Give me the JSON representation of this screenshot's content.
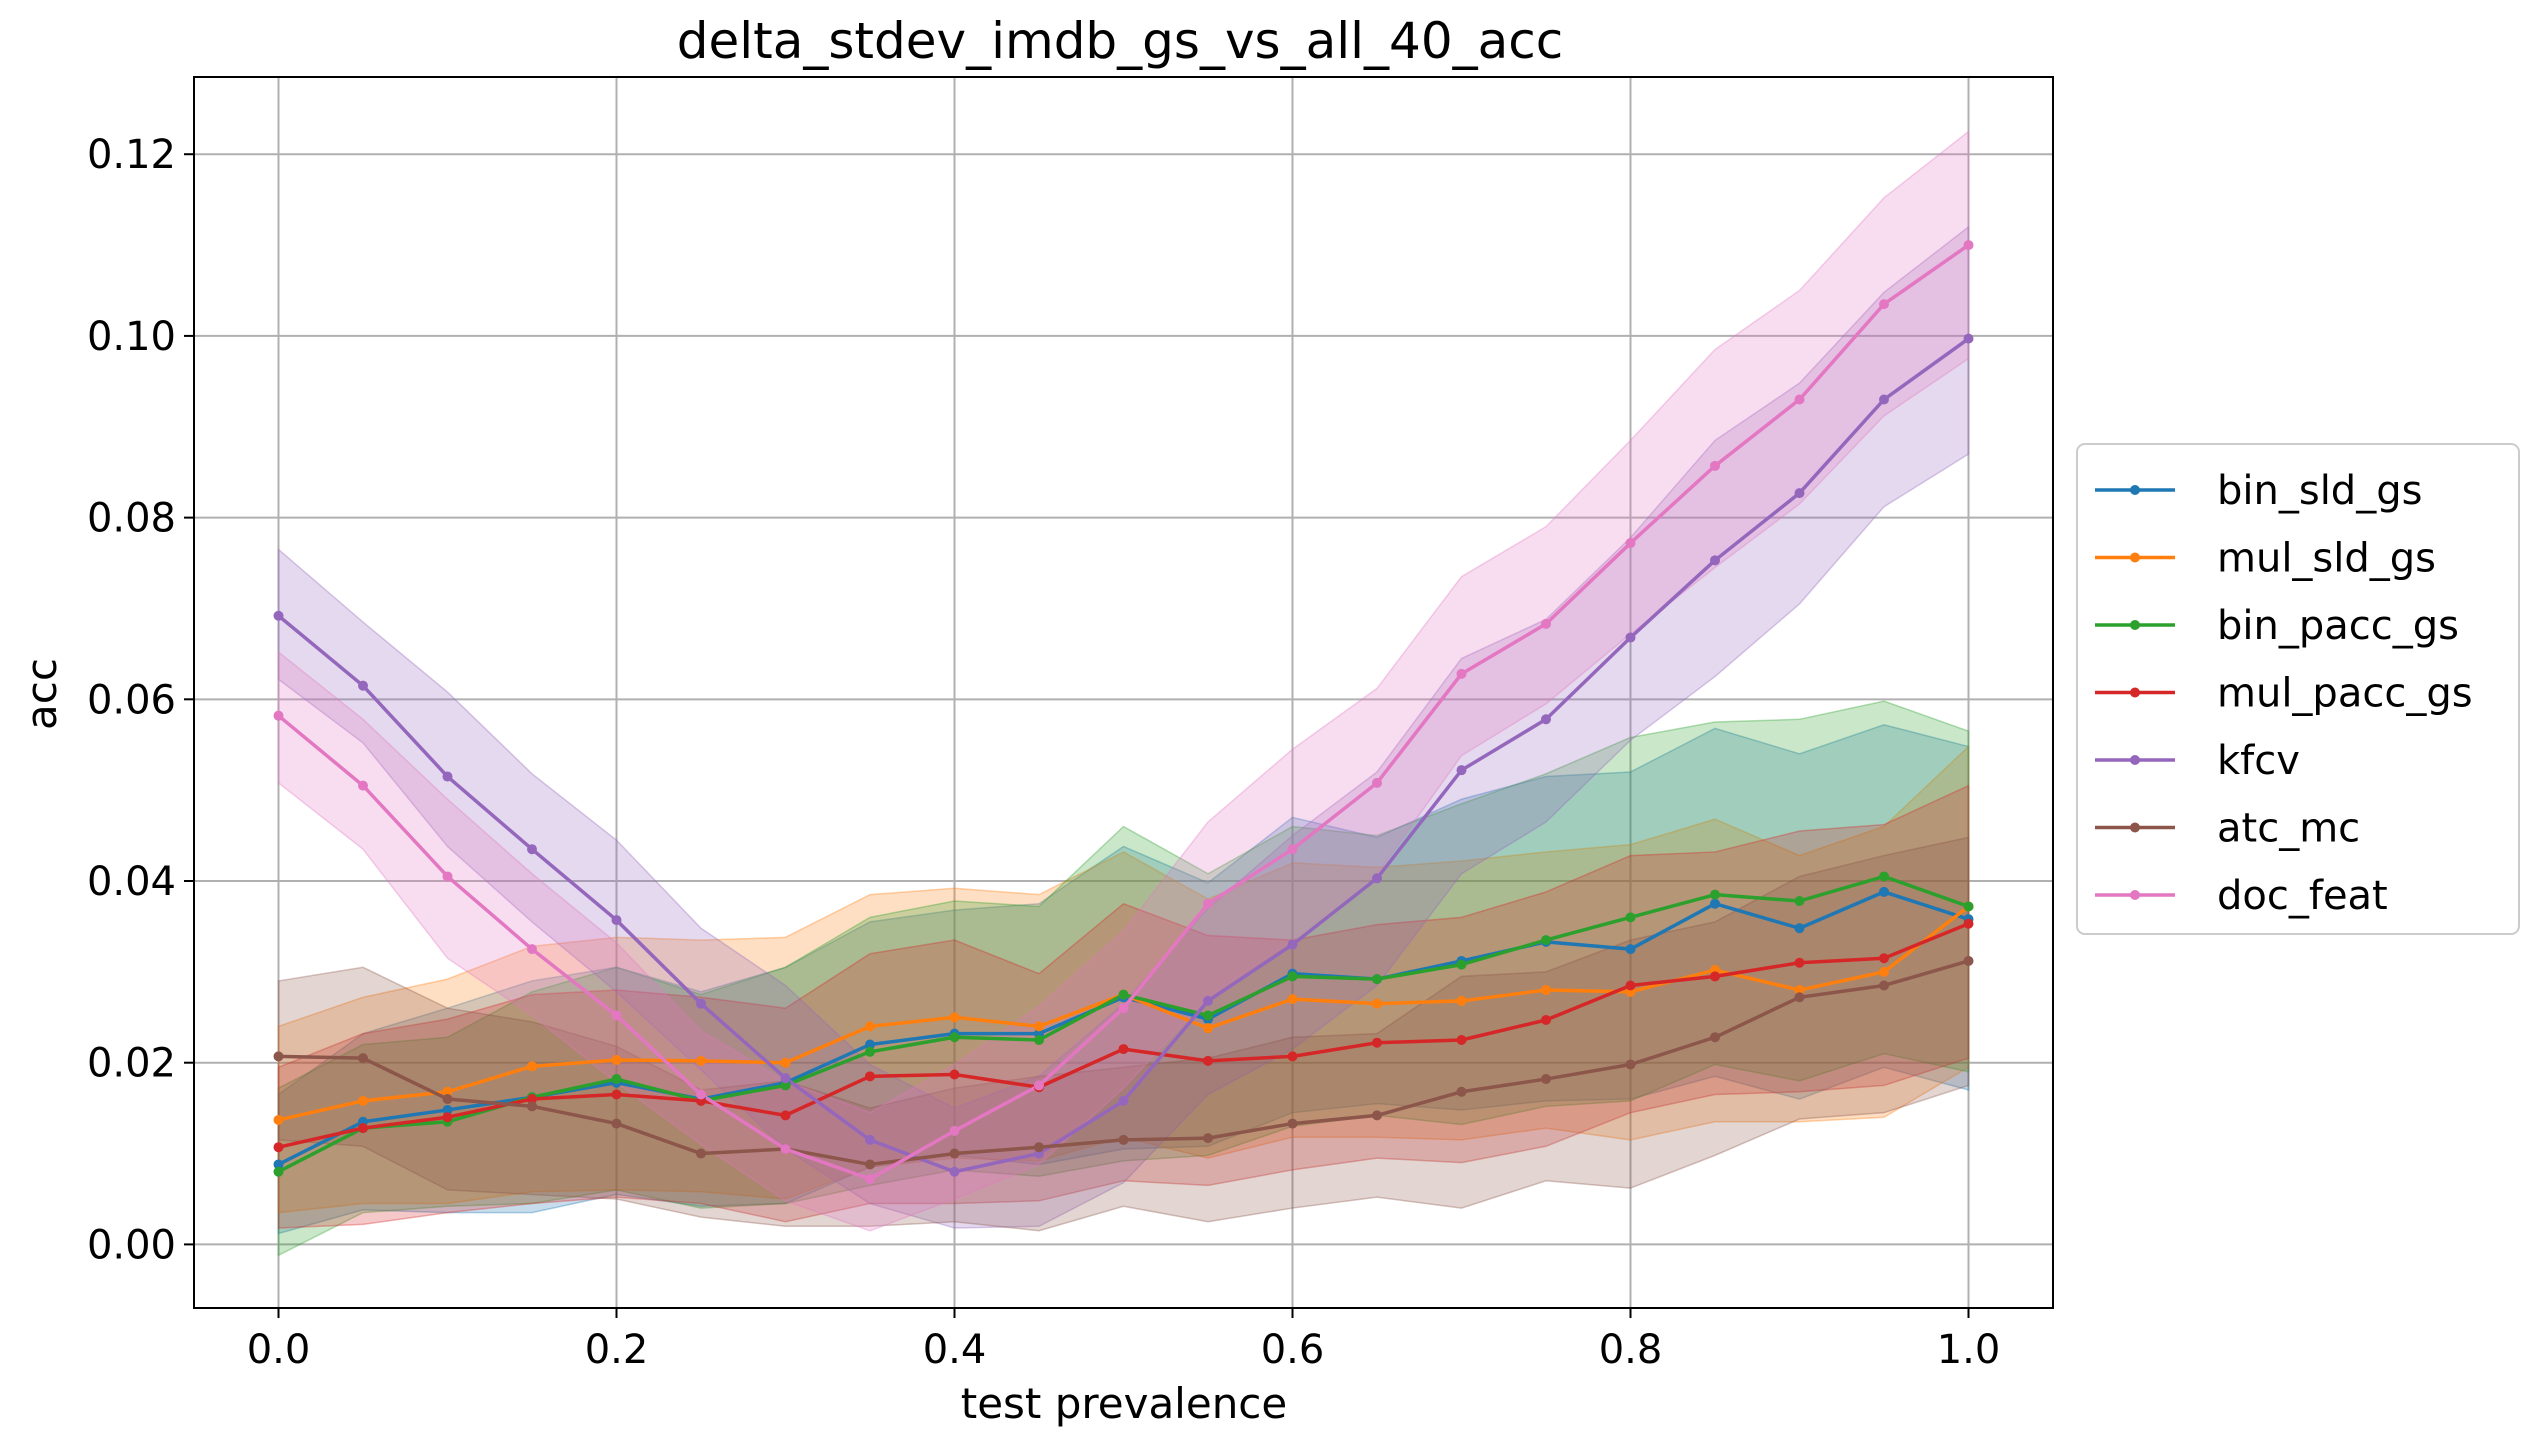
{
  "chart_data": {
    "type": "line",
    "title": "delta_stdev_imdb_gs_vs_all_40_acc",
    "xlabel": "test prevalence",
    "ylabel": "acc",
    "xlim": [
      -0.05,
      1.05
    ],
    "ylim": [
      -0.007,
      0.1285
    ],
    "xticks": [
      0.0,
      0.2,
      0.4,
      0.6,
      0.8,
      1.0
    ],
    "xtick_labels": [
      "0.0",
      "0.2",
      "0.4",
      "0.6",
      "0.8",
      "1.0"
    ],
    "yticks": [
      0.0,
      0.02,
      0.04,
      0.06,
      0.08,
      0.1,
      0.12
    ],
    "ytick_labels": [
      "0.00",
      "0.02",
      "0.04",
      "0.06",
      "0.08",
      "0.10",
      "0.12"
    ],
    "grid": true,
    "legend_position": "outside-right",
    "x": [
      0.0,
      0.05,
      0.1,
      0.15,
      0.2,
      0.25,
      0.3,
      0.35,
      0.4,
      0.45,
      0.5,
      0.55,
      0.6,
      0.65,
      0.7,
      0.75,
      0.8,
      0.85,
      0.9,
      0.95,
      1.0
    ],
    "series": [
      {
        "name": "bin_sld_gs",
        "color": "#1f77b4",
        "values": [
          0.0088,
          0.0135,
          0.0148,
          0.0162,
          0.0178,
          0.016,
          0.0178,
          0.022,
          0.0232,
          0.0232,
          0.0272,
          0.0248,
          0.0298,
          0.0292,
          0.0312,
          0.0333,
          0.0325,
          0.0375,
          0.0348,
          0.0388,
          0.0358
        ],
        "lower": [
          0.0012,
          0.0038,
          0.0035,
          0.0035,
          0.0055,
          0.0042,
          0.0045,
          0.0085,
          0.0098,
          0.0088,
          0.0105,
          0.0108,
          0.0145,
          0.0155,
          0.0148,
          0.0158,
          0.016,
          0.0185,
          0.016,
          0.0195,
          0.017
        ],
        "upper": [
          0.0165,
          0.0232,
          0.026,
          0.029,
          0.0305,
          0.0278,
          0.0305,
          0.0355,
          0.0368,
          0.0375,
          0.0438,
          0.0398,
          0.047,
          0.0448,
          0.049,
          0.0515,
          0.052,
          0.0568,
          0.054,
          0.0572,
          0.0548
        ]
      },
      {
        "name": "mul_sld_gs",
        "color": "#ff7f0e",
        "values": [
          0.0137,
          0.0158,
          0.0168,
          0.0196,
          0.0203,
          0.0202,
          0.02,
          0.024,
          0.025,
          0.024,
          0.0275,
          0.0238,
          0.027,
          0.0265,
          0.0268,
          0.028,
          0.0278,
          0.0302,
          0.028,
          0.03,
          0.0372
        ],
        "lower": [
          0.0035,
          0.0045,
          0.0045,
          0.0058,
          0.006,
          0.0058,
          0.005,
          0.0085,
          0.0095,
          0.0092,
          0.0118,
          0.0095,
          0.0118,
          0.0118,
          0.0115,
          0.0128,
          0.0115,
          0.0135,
          0.0135,
          0.014,
          0.0195
        ],
        "upper": [
          0.024,
          0.0272,
          0.0292,
          0.0328,
          0.0338,
          0.0335,
          0.0338,
          0.0385,
          0.0392,
          0.0385,
          0.0432,
          0.038,
          0.042,
          0.0415,
          0.0422,
          0.0432,
          0.044,
          0.0468,
          0.0428,
          0.046,
          0.0548
        ]
      },
      {
        "name": "bin_pacc_gs",
        "color": "#2ca02c",
        "values": [
          0.008,
          0.0128,
          0.0135,
          0.0162,
          0.0182,
          0.0158,
          0.0175,
          0.0212,
          0.0228,
          0.0225,
          0.0275,
          0.0252,
          0.0295,
          0.0292,
          0.0308,
          0.0335,
          0.036,
          0.0385,
          0.0378,
          0.0405,
          0.0372
        ],
        "lower": [
          -0.0012,
          0.0035,
          0.0042,
          0.0045,
          0.006,
          0.004,
          0.0045,
          0.0065,
          0.0082,
          0.0075,
          0.0092,
          0.0098,
          0.013,
          0.0142,
          0.0132,
          0.0152,
          0.0158,
          0.0198,
          0.018,
          0.021,
          0.019
        ],
        "upper": [
          0.0172,
          0.022,
          0.0228,
          0.0278,
          0.0305,
          0.0275,
          0.0305,
          0.036,
          0.0378,
          0.0372,
          0.046,
          0.0408,
          0.046,
          0.045,
          0.0485,
          0.0518,
          0.0558,
          0.0575,
          0.0578,
          0.0598,
          0.0565
        ]
      },
      {
        "name": "mul_pacc_gs",
        "color": "#d62728",
        "values": [
          0.0107,
          0.0128,
          0.014,
          0.016,
          0.0165,
          0.0158,
          0.0142,
          0.0185,
          0.0187,
          0.0173,
          0.0215,
          0.0202,
          0.0207,
          0.0222,
          0.0225,
          0.0247,
          0.0285,
          0.0295,
          0.031,
          0.0315,
          0.0353
        ],
        "lower": [
          0.0018,
          0.0022,
          0.0035,
          0.0045,
          0.0052,
          0.0045,
          0.0025,
          0.0045,
          0.0045,
          0.0048,
          0.007,
          0.0065,
          0.0082,
          0.0095,
          0.009,
          0.0108,
          0.0145,
          0.0165,
          0.0168,
          0.0175,
          0.0205
        ],
        "upper": [
          0.0195,
          0.0232,
          0.0248,
          0.0275,
          0.028,
          0.0272,
          0.026,
          0.032,
          0.0335,
          0.0298,
          0.0375,
          0.034,
          0.0335,
          0.0352,
          0.036,
          0.0388,
          0.0428,
          0.0432,
          0.0455,
          0.0462,
          0.0505
        ]
      },
      {
        "name": "kfcv",
        "color": "#9467bd",
        "values": [
          0.0692,
          0.0615,
          0.0515,
          0.0435,
          0.0357,
          0.0265,
          0.0183,
          0.0115,
          0.008,
          0.01,
          0.0158,
          0.0268,
          0.033,
          0.0403,
          0.0522,
          0.0578,
          0.0668,
          0.0753,
          0.0827,
          0.093,
          0.0997
        ],
        "lower": [
          0.0622,
          0.0552,
          0.0438,
          0.0355,
          0.0278,
          0.0192,
          0.0105,
          0.0045,
          0.0018,
          0.002,
          0.0068,
          0.0165,
          0.0215,
          0.0285,
          0.0408,
          0.0465,
          0.0555,
          0.0625,
          0.0705,
          0.0812,
          0.087
        ],
        "upper": [
          0.0765,
          0.0685,
          0.0608,
          0.0518,
          0.0445,
          0.0348,
          0.0285,
          0.0198,
          0.015,
          0.0185,
          0.0265,
          0.037,
          0.045,
          0.052,
          0.0645,
          0.0688,
          0.0778,
          0.0885,
          0.0948,
          0.1048,
          0.112
        ]
      },
      {
        "name": "atc_mc",
        "color": "#8c564b",
        "values": [
          0.0207,
          0.0205,
          0.016,
          0.0152,
          0.0133,
          0.01,
          0.0105,
          0.0088,
          0.01,
          0.0107,
          0.0115,
          0.0117,
          0.0133,
          0.0142,
          0.0168,
          0.0182,
          0.0198,
          0.0228,
          0.0272,
          0.0285,
          0.0312
        ],
        "lower": [
          0.0115,
          0.0108,
          0.006,
          0.0055,
          0.005,
          0.003,
          0.002,
          0.002,
          0.0025,
          0.0015,
          0.0042,
          0.0025,
          0.004,
          0.0052,
          0.004,
          0.007,
          0.0062,
          0.0098,
          0.0138,
          0.0145,
          0.0175
        ],
        "upper": [
          0.029,
          0.0305,
          0.026,
          0.0245,
          0.0218,
          0.017,
          0.018,
          0.015,
          0.0172,
          0.0185,
          0.0195,
          0.0205,
          0.0228,
          0.0232,
          0.0295,
          0.03,
          0.0335,
          0.0355,
          0.0405,
          0.0428,
          0.0448
        ]
      },
      {
        "name": "doc_feat",
        "color": "#e377c2",
        "values": [
          0.0582,
          0.0505,
          0.0405,
          0.0325,
          0.0252,
          0.0165,
          0.0105,
          0.0072,
          0.0125,
          0.0175,
          0.026,
          0.0375,
          0.0435,
          0.0508,
          0.0628,
          0.0683,
          0.0772,
          0.0857,
          0.093,
          0.1035,
          0.11
        ],
        "lower": [
          0.0508,
          0.0435,
          0.0315,
          0.0252,
          0.0178,
          0.011,
          0.0048,
          0.0015,
          0.005,
          0.0088,
          0.0172,
          0.0272,
          0.0335,
          0.0408,
          0.0538,
          0.0595,
          0.0672,
          0.0745,
          0.0815,
          0.0912,
          0.0975
        ],
        "upper": [
          0.0652,
          0.0578,
          0.049,
          0.0408,
          0.0332,
          0.0235,
          0.018,
          0.0145,
          0.0198,
          0.0262,
          0.0345,
          0.0465,
          0.0545,
          0.0612,
          0.0735,
          0.079,
          0.0885,
          0.0985,
          0.105,
          0.1152,
          0.1225
        ]
      }
    ]
  }
}
